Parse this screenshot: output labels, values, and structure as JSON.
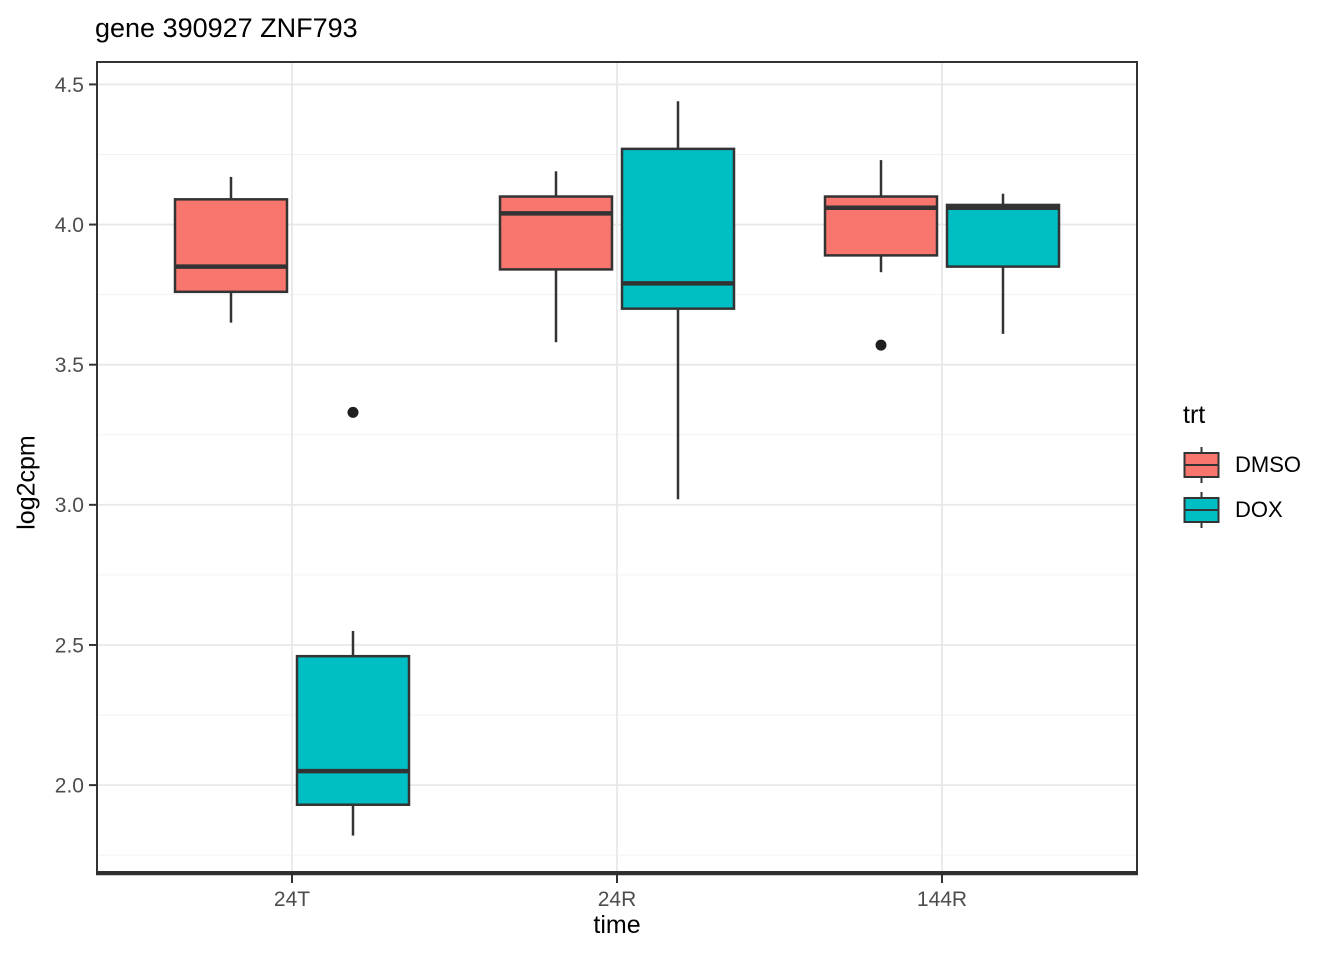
{
  "title": "gene 390927 ZNF793",
  "colors": {
    "dmso": "#F8766D",
    "dox": "#00BFC4",
    "box_outline": "#333333",
    "grid_major": "#E8E8E8",
    "grid_minor": "#F2F2F2",
    "axis_text": "#4D4D4D",
    "axis_line": "#2E2E2E",
    "outlier": "#1F1F1F",
    "title_text": "#000000"
  },
  "chart_data": {
    "type": "boxplot",
    "title": "gene 390927 ZNF793",
    "xlabel": "time",
    "ylabel": "log2cpm",
    "categories": [
      "24T",
      "24R",
      "144R"
    ],
    "y_ticks": [
      2.0,
      2.5,
      3.0,
      3.5,
      4.0,
      4.5
    ],
    "ylim": [
      1.69,
      4.58
    ],
    "grid": true,
    "legend": {
      "title": "trt",
      "position": "right",
      "entries": [
        {
          "label": "DMSO",
          "color": "#F8766D"
        },
        {
          "label": "DOX",
          "color": "#00BFC4"
        }
      ]
    },
    "series": [
      {
        "name": "DMSO",
        "color": "#F8766D",
        "boxes": [
          {
            "category": "24T",
            "whisker_low": 3.65,
            "q1": 3.76,
            "median": 3.85,
            "q3": 4.09,
            "whisker_high": 4.17,
            "outliers": []
          },
          {
            "category": "24R",
            "whisker_low": 3.58,
            "q1": 3.84,
            "median": 4.04,
            "q3": 4.1,
            "whisker_high": 4.19,
            "outliers": []
          },
          {
            "category": "144R",
            "whisker_low": 3.83,
            "q1": 3.89,
            "median": 4.06,
            "q3": 4.1,
            "whisker_high": 4.23,
            "outliers": [
              3.57
            ]
          }
        ]
      },
      {
        "name": "DOX",
        "color": "#00BFC4",
        "boxes": [
          {
            "category": "24T",
            "whisker_low": 1.82,
            "q1": 1.93,
            "median": 2.05,
            "q3": 2.46,
            "whisker_high": 2.55,
            "outliers": [
              3.33
            ]
          },
          {
            "category": "24R",
            "whisker_low": 3.02,
            "q1": 3.7,
            "median": 3.79,
            "q3": 4.27,
            "whisker_high": 4.44,
            "outliers": []
          },
          {
            "category": "144R",
            "whisker_low": 3.61,
            "q1": 3.85,
            "median": 4.06,
            "q3": 4.07,
            "whisker_high": 4.11,
            "outliers": []
          }
        ]
      }
    ]
  }
}
